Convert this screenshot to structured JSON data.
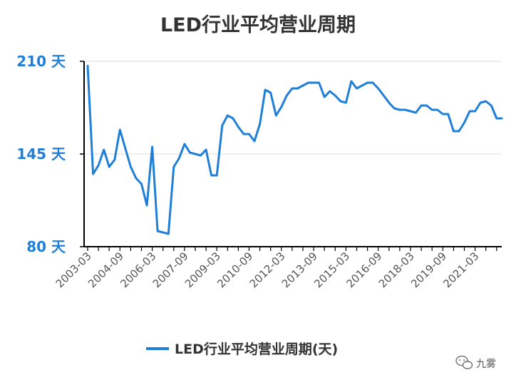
{
  "chart_data": {
    "type": "line",
    "title": "LED行业平均营业周期",
    "ylim": [
      80,
      210
    ],
    "yticks": [
      {
        "value": 210,
        "label": "210 天"
      },
      {
        "value": 145,
        "label": "145 天"
      },
      {
        "value": 80,
        "label": "80 天"
      }
    ],
    "xtick_labels": [
      "2003-03",
      "2004-09",
      "2006-03",
      "2007-09",
      "2009-03",
      "2010-09",
      "2012-03",
      "2013-09",
      "2015-03",
      "2016-09",
      "2018-03",
      "2019-09",
      "2021-03"
    ],
    "x": [
      "2003-03",
      "2003-06",
      "2003-09",
      "2003-12",
      "2004-03",
      "2004-06",
      "2004-09",
      "2004-12",
      "2005-03",
      "2005-06",
      "2005-09",
      "2005-12",
      "2006-03",
      "2006-06",
      "2006-09",
      "2006-12",
      "2007-03",
      "2007-06",
      "2007-09",
      "2007-12",
      "2008-03",
      "2008-06",
      "2008-09",
      "2008-12",
      "2009-03",
      "2009-06",
      "2009-09",
      "2009-12",
      "2010-03",
      "2010-06",
      "2010-09",
      "2010-12",
      "2011-03",
      "2011-06",
      "2011-09",
      "2011-12",
      "2012-03",
      "2012-06",
      "2012-09",
      "2012-12",
      "2013-03",
      "2013-06",
      "2013-09",
      "2013-12",
      "2014-03",
      "2014-06",
      "2014-09",
      "2014-12",
      "2015-03",
      "2015-06",
      "2015-09",
      "2015-12",
      "2016-03",
      "2016-06",
      "2016-09",
      "2016-12",
      "2017-03",
      "2017-06",
      "2017-09",
      "2017-12",
      "2018-03",
      "2018-06",
      "2018-09",
      "2018-12",
      "2019-03",
      "2019-06",
      "2019-09",
      "2019-12",
      "2020-03",
      "2020-06",
      "2020-09",
      "2020-12",
      "2021-03",
      "2021-06",
      "2021-09",
      "2021-12",
      "2022-03",
      "2022-06"
    ],
    "series": [
      {
        "name": "LED行业平均营业周期(天)",
        "color": "#1f7fd8",
        "values": [
          207,
          131,
          137,
          148,
          136,
          141,
          162,
          149,
          136,
          128,
          124,
          109,
          150,
          91,
          90,
          89,
          136,
          142,
          152,
          146,
          145,
          144,
          148,
          130,
          130,
          165,
          172,
          170,
          164,
          159,
          159,
          154,
          166,
          190,
          188,
          172,
          178,
          186,
          191,
          191,
          193,
          195,
          195,
          195,
          185,
          189,
          186,
          182,
          181,
          196,
          191,
          193,
          195,
          195,
          191,
          186,
          181,
          177,
          176,
          176,
          175,
          174,
          179,
          179,
          176,
          176,
          173,
          173,
          161,
          161,
          167,
          175,
          175,
          181,
          182,
          179,
          170,
          170
        ]
      }
    ],
    "legend_position": "bottom-center",
    "grid": "horizontal"
  },
  "watermark": {
    "text": "九雾",
    "icon": "wechat-chat-icon"
  }
}
